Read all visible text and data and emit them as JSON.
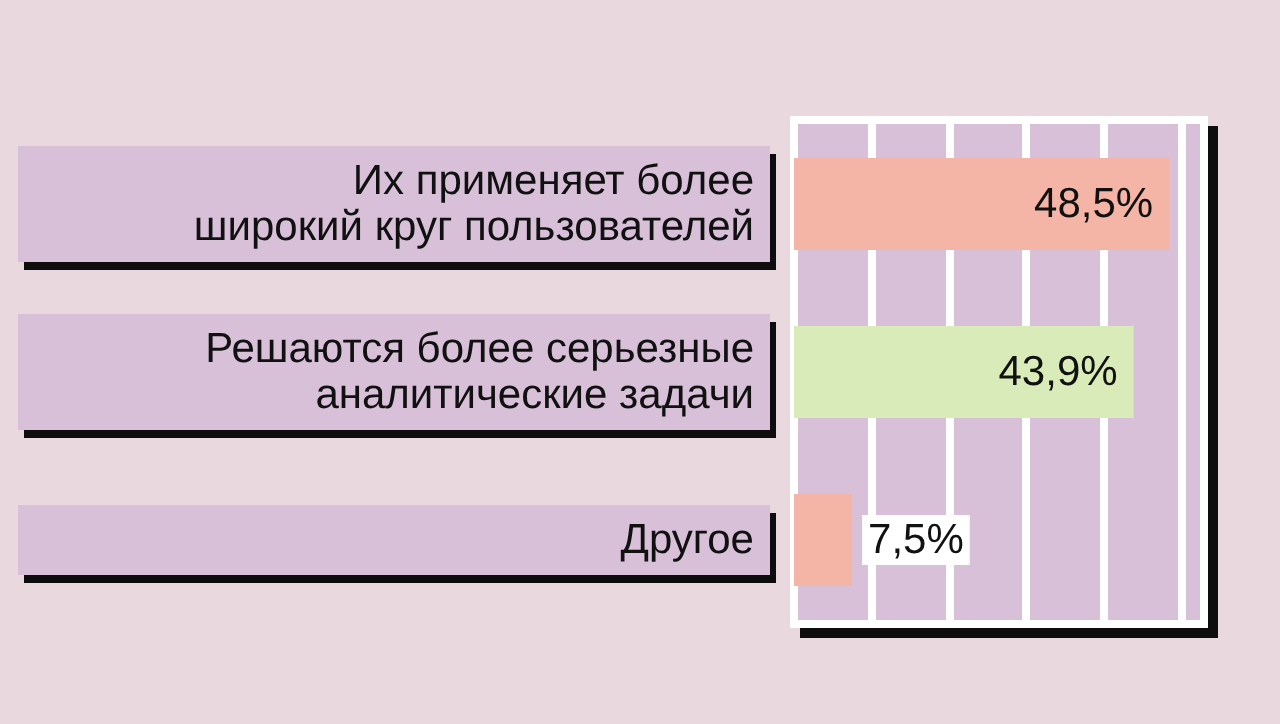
{
  "chart_data": {
    "type": "bar",
    "orientation": "horizontal",
    "categories": [
      "Их применяет более\nширокий круг пользователей",
      "Решаются более серьезные\nаналитические задачи",
      "Другое"
    ],
    "values": [
      48.5,
      43.9,
      7.5
    ],
    "colors": [
      "#f4b4a6",
      "#d9ebb9",
      "#f4b4a6"
    ],
    "value_labels": [
      "48,5%",
      "43,9%",
      "7,5%"
    ],
    "xlim": [
      0,
      53
    ],
    "grid": "x",
    "tick_labels": "y"
  }
}
